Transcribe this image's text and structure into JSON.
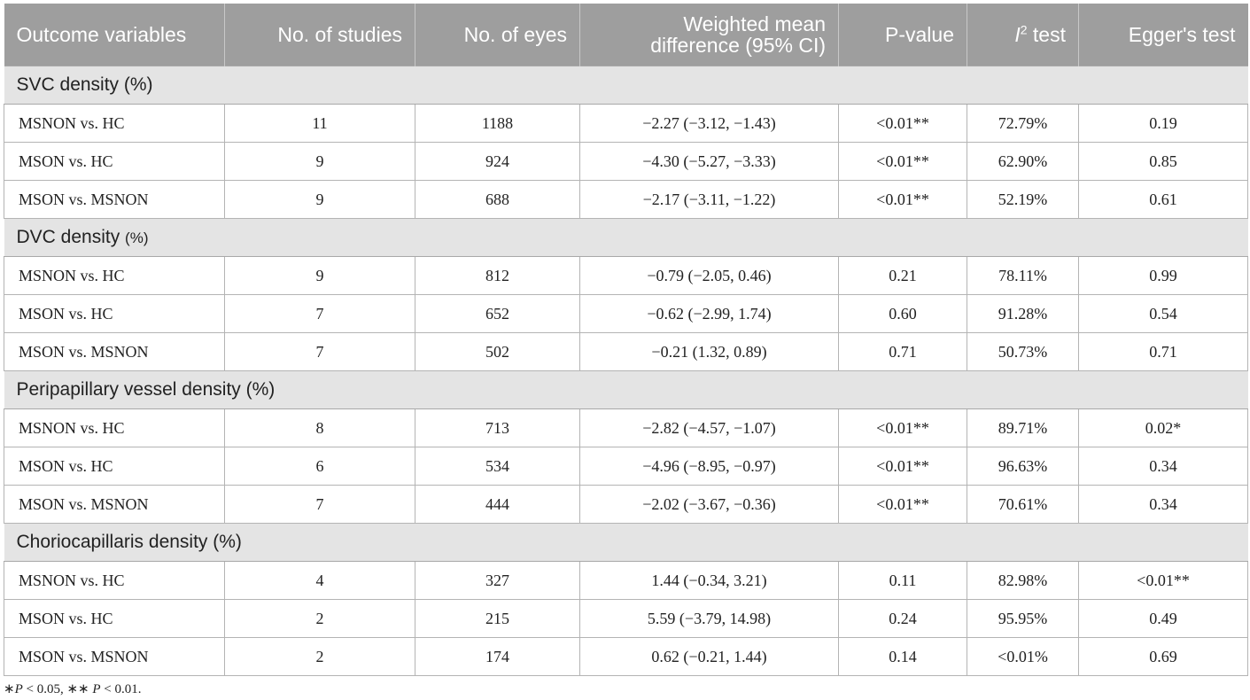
{
  "header": {
    "outcome": "Outcome variables",
    "studies": "No. of studies",
    "eyes": "No. of eyes",
    "wmd_line1": "Weighted mean",
    "wmd_line2": "difference (95% CI)",
    "pvalue": "P-value",
    "i2_letter": "I",
    "i2_sup": "2",
    "i2_suffix": " test",
    "egger": "Egger's test"
  },
  "sections": [
    {
      "title": "SVC density (%)",
      "rows": [
        {
          "comparison": "MSNON vs. HC",
          "studies": "11",
          "eyes": "1188",
          "wmd": "−2.27 (−3.12, −1.43)",
          "p": "<0.01**",
          "i2": "72.79%",
          "egger": "0.19"
        },
        {
          "comparison": "MSON vs. HC",
          "studies": "9",
          "eyes": "924",
          "wmd": "−4.30 (−5.27, −3.33)",
          "p": "<0.01**",
          "i2": "62.90%",
          "egger": "0.85"
        },
        {
          "comparison": "MSON vs. MSNON",
          "studies": "9",
          "eyes": "688",
          "wmd": "−2.17 (−3.11, −1.22)",
          "p": "<0.01**",
          "i2": "52.19%",
          "egger": "0.61"
        }
      ]
    },
    {
      "title_main": "DVC density ",
      "title_small": "(%)",
      "rows": [
        {
          "comparison": "MSNON vs. HC",
          "studies": "9",
          "eyes": "812",
          "wmd": "−0.79 (−2.05, 0.46)",
          "p": "0.21",
          "i2": "78.11%",
          "egger": "0.99"
        },
        {
          "comparison": "MSON vs. HC",
          "studies": "7",
          "eyes": "652",
          "wmd": "−0.62 (−2.99, 1.74)",
          "p": "0.60",
          "i2": "91.28%",
          "egger": "0.54"
        },
        {
          "comparison": "MSON vs. MSNON",
          "studies": "7",
          "eyes": "502",
          "wmd": "−0.21 (1.32, 0.89)",
          "p": "0.71",
          "i2": "50.73%",
          "egger": "0.71"
        }
      ]
    },
    {
      "title": "Peripapillary vessel density (%)",
      "rows": [
        {
          "comparison": "MSNON vs. HC",
          "studies": "8",
          "eyes": "713",
          "wmd": "−2.82 (−4.57, −1.07)",
          "p": "<0.01**",
          "i2": "89.71%",
          "egger": "0.02*"
        },
        {
          "comparison": "MSON vs. HC",
          "studies": "6",
          "eyes": "534",
          "wmd": "−4.96 (−8.95, −0.97)",
          "p": "<0.01**",
          "i2": "96.63%",
          "egger": "0.34"
        },
        {
          "comparison": "MSON vs. MSNON",
          "studies": "7",
          "eyes": "444",
          "wmd": "−2.02 (−3.67, −0.36)",
          "p": "<0.01**",
          "i2": "70.61%",
          "egger": "0.34"
        }
      ]
    },
    {
      "title": "Choriocapillaris density (%)",
      "rows": [
        {
          "comparison": "MSNON vs. HC",
          "studies": "4",
          "eyes": "327",
          "wmd": "1.44 (−0.34, 3.21)",
          "p": "0.11",
          "i2": "82.98%",
          "egger": "<0.01**"
        },
        {
          "comparison": "MSON vs. HC",
          "studies": "2",
          "eyes": "215",
          "wmd": "5.59 (−3.79, 14.98)",
          "p": "0.24",
          "i2": "95.95%",
          "egger": "0.49"
        },
        {
          "comparison": "MSON vs. MSNON",
          "studies": "2",
          "eyes": "174",
          "wmd": "0.62 (−0.21, 1.44)",
          "p": "0.14",
          "i2": "<0.01%",
          "egger": "0.69"
        }
      ]
    }
  ],
  "footnote": {
    "star1": "∗",
    "p1": "P",
    "t1": " < 0.05, ",
    "star2": "∗∗",
    "p2": " P",
    "t2": " < 0.01."
  }
}
